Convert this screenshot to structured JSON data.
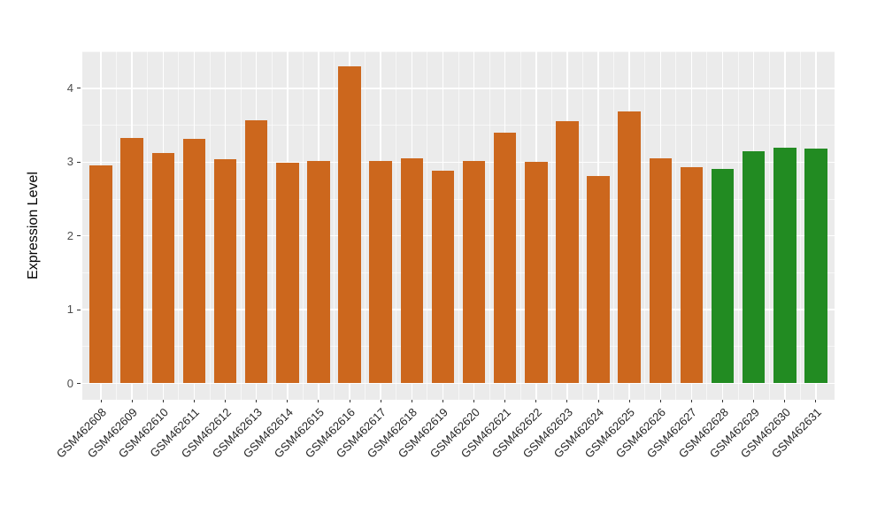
{
  "chart_data": {
    "type": "bar",
    "title": "",
    "xlabel": "",
    "ylabel": "Expression Level",
    "categories": [
      "GSM462608",
      "GSM462609",
      "GSM462610",
      "GSM462611",
      "GSM462612",
      "GSM462613",
      "GSM462614",
      "GSM462615",
      "GSM462616",
      "GSM462617",
      "GSM462618",
      "GSM462619",
      "GSM462620",
      "GSM462621",
      "GSM462622",
      "GSM462623",
      "GSM462624",
      "GSM462625",
      "GSM462626",
      "GSM462627",
      "GSM462628",
      "GSM462629",
      "GSM462630",
      "GSM462631"
    ],
    "values": [
      2.96,
      3.33,
      3.12,
      3.32,
      3.04,
      3.57,
      2.99,
      3.01,
      4.3,
      3.01,
      3.05,
      2.88,
      3.01,
      3.4,
      3.0,
      3.56,
      2.81,
      3.69,
      3.05,
      2.93,
      2.91,
      3.15,
      3.2,
      3.18
    ],
    "bar_colors": [
      "#CC671D",
      "#CC671D",
      "#CC671D",
      "#CC671D",
      "#CC671D",
      "#CC671D",
      "#CC671D",
      "#CC671D",
      "#CC671D",
      "#CC671D",
      "#CC671D",
      "#CC671D",
      "#CC671D",
      "#CC671D",
      "#CC671D",
      "#CC671D",
      "#CC671D",
      "#CC671D",
      "#CC671D",
      "#CC671D",
      "#228B22",
      "#228B22",
      "#228B22",
      "#228B22"
    ],
    "groups": [
      {
        "color": "#CC671D",
        "first": "GSM462608",
        "last": "GSM462627",
        "count": 20
      },
      {
        "color": "#228B22",
        "first": "GSM462628",
        "last": "GSM462631",
        "count": 4
      }
    ],
    "yticks": [
      0,
      1,
      2,
      3,
      4
    ],
    "ylim": [
      -0.22,
      4.52
    ],
    "grid": true,
    "legend_position": "none",
    "panel_background": "#EBEBEB",
    "gridline_color": "#FFFFFF"
  }
}
